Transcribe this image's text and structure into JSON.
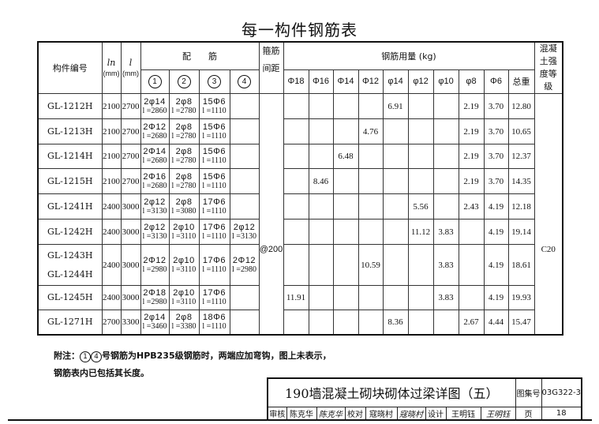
{
  "title": "每一构件钢筋表",
  "headers": {
    "member_id": "构件编号",
    "ln": "ln",
    "l": "l",
    "mm": "(mm)",
    "reinforcement": "配　　筋",
    "bar_nums": [
      "1",
      "2",
      "3",
      "4"
    ],
    "stirrup": "箍筋间距",
    "steel_usage": "钢筋用量 (kg)",
    "diameters": [
      "Φ18",
      "Φ16",
      "Φ14",
      "Φ12",
      "φ14",
      "φ12",
      "φ10",
      "φ8",
      "Φ6",
      "总重"
    ],
    "concrete": "混凝土强度等级"
  },
  "stirrup_spacing": "@200",
  "concrete_grade": "C20",
  "rows": [
    {
      "name": [
        "GL-1212H"
      ],
      "ln": "2100",
      "l": "2700",
      "bars": [
        {
          "n": "2φ14",
          "l": "l =2860"
        },
        {
          "n": "2φ8",
          "l": "l =2780"
        },
        {
          "n": "15Φ6",
          "l": "l =1110"
        },
        {
          "n": "",
          "l": ""
        }
      ],
      "weights": [
        "",
        "",
        "",
        "",
        "6.91",
        "",
        "",
        "2.19",
        "3.70",
        "12.80"
      ]
    },
    {
      "name": [
        "GL-1213H"
      ],
      "ln": "2100",
      "l": "2700",
      "bars": [
        {
          "n": "2Φ12",
          "l": "l =2680"
        },
        {
          "n": "2φ8",
          "l": "l =2780"
        },
        {
          "n": "15Φ6",
          "l": "l =1110"
        },
        {
          "n": "",
          "l": ""
        }
      ],
      "weights": [
        "",
        "",
        "",
        "4.76",
        "",
        "",
        "",
        "2.19",
        "3.70",
        "10.65"
      ]
    },
    {
      "name": [
        "GL-1214H"
      ],
      "ln": "2100",
      "l": "2700",
      "bars": [
        {
          "n": "2Φ14",
          "l": "l =2680"
        },
        {
          "n": "2φ8",
          "l": "l =2780"
        },
        {
          "n": "15Φ6",
          "l": "l =1110"
        },
        {
          "n": "",
          "l": ""
        }
      ],
      "weights": [
        "",
        "",
        "6.48",
        "",
        "",
        "",
        "",
        "2.19",
        "3.70",
        "12.37"
      ]
    },
    {
      "name": [
        "GL-1215H"
      ],
      "ln": "2100",
      "l": "2700",
      "bars": [
        {
          "n": "2Φ16",
          "l": "l =2680"
        },
        {
          "n": "2φ8",
          "l": "l =2780"
        },
        {
          "n": "15Φ6",
          "l": "l =1110"
        },
        {
          "n": "",
          "l": ""
        }
      ],
      "weights": [
        "",
        "8.46",
        "",
        "",
        "",
        "",
        "",
        "2.19",
        "3.70",
        "14.35"
      ]
    },
    {
      "name": [
        "GL-1241H"
      ],
      "ln": "2400",
      "l": "3000",
      "bars": [
        {
          "n": "2φ12",
          "l": "l =3130"
        },
        {
          "n": "2φ8",
          "l": "l =3080"
        },
        {
          "n": "17Φ6",
          "l": "l =1110"
        },
        {
          "n": "",
          "l": ""
        }
      ],
      "weights": [
        "",
        "",
        "",
        "",
        "",
        "5.56",
        "",
        "2.43",
        "4.19",
        "12.18"
      ]
    },
    {
      "name": [
        "GL-1242H"
      ],
      "ln": "2400",
      "l": "3000",
      "bars": [
        {
          "n": "2φ12",
          "l": "l =3130"
        },
        {
          "n": "2φ10",
          "l": "l =3110"
        },
        {
          "n": "17Φ6",
          "l": "l =1110"
        },
        {
          "n": "2φ12",
          "l": "l =3130"
        }
      ],
      "weights": [
        "",
        "",
        "",
        "",
        "",
        "11.12",
        "3.83",
        "",
        "4.19",
        "19.14"
      ]
    },
    {
      "name": [
        "GL-1243H",
        "GL-1244H"
      ],
      "ln": "2400",
      "l": "3000",
      "bars": [
        {
          "n": "2Φ12",
          "l": "l =2980"
        },
        {
          "n": "2φ10",
          "l": "l =3110"
        },
        {
          "n": "17Φ6",
          "l": "l =1110"
        },
        {
          "n": "2Φ12",
          "l": "l =2980"
        }
      ],
      "weights": [
        "",
        "",
        "",
        "10.59",
        "",
        "",
        "3.83",
        "",
        "4.19",
        "18.61"
      ]
    },
    {
      "name": [
        "GL-1245H"
      ],
      "ln": "2400",
      "l": "3000",
      "bars": [
        {
          "n": "2Φ18",
          "l": "l =2980"
        },
        {
          "n": "2φ10",
          "l": "l =3110"
        },
        {
          "n": "17Φ6",
          "l": "l =1110"
        },
        {
          "n": "",
          "l": ""
        }
      ],
      "weights": [
        "11.91",
        "",
        "",
        "",
        "",
        "",
        "3.83",
        "",
        "4.19",
        "19.93"
      ]
    },
    {
      "name": [
        "GL-1271H"
      ],
      "ln": "2700",
      "l": "3300",
      "bars": [
        {
          "n": "2φ14",
          "l": "l =3460"
        },
        {
          "n": "2φ8",
          "l": "l =3380"
        },
        {
          "n": "18Φ6",
          "l": "l =1110"
        },
        {
          "n": "",
          "l": ""
        }
      ],
      "weights": [
        "",
        "",
        "",
        "",
        "8.36",
        "",
        "",
        "2.67",
        "4.44",
        "15.47"
      ]
    }
  ],
  "note": {
    "prefix": "附注：",
    "circles": [
      "1",
      "4"
    ],
    "line1": "号钢筋为HPB235级钢筋时，两端应加弯钩，图上未表示，",
    "line2": "钢筋表内已包括其长度。"
  },
  "title_block": {
    "drawing_title": "190墙混凝土砌块砌体过梁详图（五）",
    "atlas_label": "图集号",
    "atlas_no": "03G322-3",
    "review_label": "审核",
    "reviewer": "陈克华",
    "reviewer_sig": "陈克华",
    "check_label": "校对",
    "checker": "寇晓村",
    "checker_sig": "寇晓村",
    "design_label": "设计",
    "designer": "王明钰",
    "designer_sig": "王明钰",
    "page_label": "页",
    "page_no": "18"
  }
}
